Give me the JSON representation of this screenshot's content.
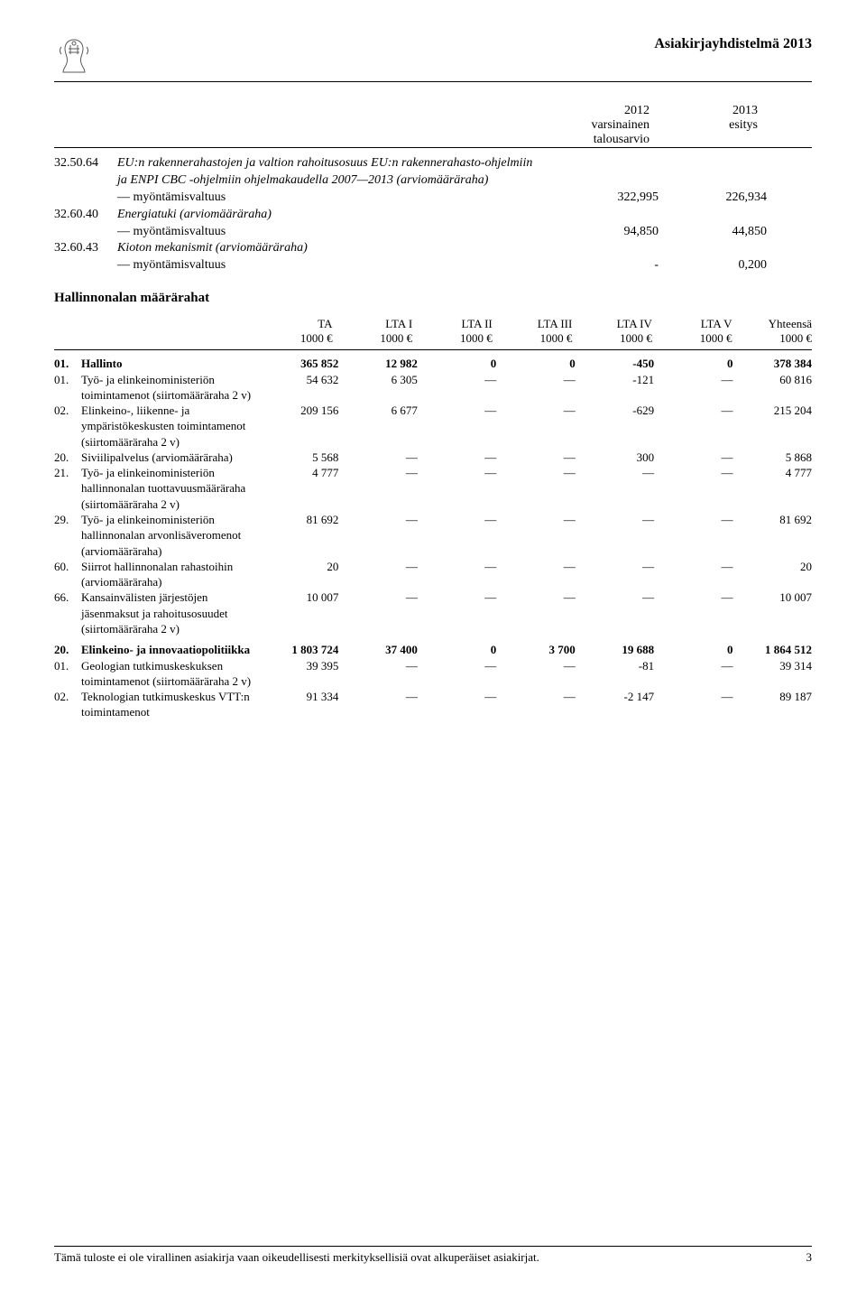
{
  "doc_title": "Asiakirjayhdistelmä 2013",
  "upper": {
    "head": {
      "col_a_line1": "2012",
      "col_a_line2": "varsinainen",
      "col_a_line3": "talousarvio",
      "col_b_line1": "2013",
      "col_b_line2": "esitys"
    },
    "rows": [
      {
        "code": "32.50.64",
        "desc_main": "EU:n rakennerahastojen ja valtion rahoitusosuus EU:n rakennerahasto-ohjelmiin ja ENPI CBC -ohjelmiin ohjelmakaudella 2007—2013 (arviomääräraha)",
        "desc_main_italic": true,
        "sub_label": "— myöntämisvaltuus",
        "val_a": "322,995",
        "val_b": "226,934"
      },
      {
        "code": "32.60.40",
        "desc_main": "Energiatuki (arviomääräraha)",
        "desc_main_italic": true,
        "sub_label": "— myöntämisvaltuus",
        "val_a": "94,850",
        "val_b": "44,850"
      },
      {
        "code": "32.60.43",
        "desc_main": "Kioton mekanismit (arviomääräraha)",
        "desc_main_italic": true,
        "sub_label": "— myöntämisvaltuus",
        "val_a": "-",
        "val_b": "0,200"
      }
    ]
  },
  "section_title": "Hallinnonalan määrärahat",
  "mtable": {
    "headers": [
      {
        "l1": "TA",
        "l2": "1000 €"
      },
      {
        "l1": "LTA I",
        "l2": "1000 €"
      },
      {
        "l1": "LTA II",
        "l2": "1000 €"
      },
      {
        "l1": "LTA III",
        "l2": "1000 €"
      },
      {
        "l1": "LTA IV",
        "l2": "1000 €"
      },
      {
        "l1": "LTA V",
        "l2": "1000 €"
      },
      {
        "l1": "Yhteensä",
        "l2": "1000 €"
      }
    ],
    "rows": [
      {
        "code": "01.",
        "desc": "Hallinto",
        "bold": true,
        "vals": [
          "365 852",
          "12 982",
          "0",
          "0",
          "-450",
          "0",
          "378 384"
        ]
      },
      {
        "code": "01.",
        "desc": "Työ- ja elinkeinoministeriön toimintamenot (siirtomääräraha 2 v)",
        "vals": [
          "54 632",
          "6 305",
          "—",
          "—",
          "-121",
          "—",
          "60 816"
        ]
      },
      {
        "code": "02.",
        "desc": "Elinkeino-, liikenne- ja ympäristökeskusten toimintamenot (siirtomääräraha 2 v)",
        "vals": [
          "209 156",
          "6 677",
          "—",
          "—",
          "-629",
          "—",
          "215 204"
        ]
      },
      {
        "code": "20.",
        "desc": "Siviilipalvelus (arviomääräraha)",
        "vals": [
          "5 568",
          "—",
          "—",
          "—",
          "300",
          "—",
          "5 868"
        ]
      },
      {
        "code": "21.",
        "desc": "Työ- ja elinkeinoministeriön hallinnonalan tuottavuusmääräraha (siirtomääräraha 2 v)",
        "vals": [
          "4 777",
          "—",
          "—",
          "—",
          "—",
          "—",
          "4 777"
        ]
      },
      {
        "code": "29.",
        "desc": "Työ- ja elinkeinoministeriön hallinnonalan arvonlisäveromenot (arviomääräraha)",
        "vals": [
          "81 692",
          "—",
          "—",
          "—",
          "—",
          "—",
          "81 692"
        ]
      },
      {
        "code": "60.",
        "desc": "Siirrot hallinnonalan rahastoihin (arviomääräraha)",
        "vals": [
          "20",
          "—",
          "—",
          "—",
          "—",
          "—",
          "20"
        ]
      },
      {
        "code": "66.",
        "desc": "Kansainvälisten järjestöjen jäsenmaksut ja rahoitusosuudet (siirtomääräraha 2 v)",
        "vals": [
          "10 007",
          "—",
          "—",
          "—",
          "—",
          "—",
          "10 007"
        ]
      },
      {
        "code": "20.",
        "desc": "Elinkeino- ja innovaatiopolitiikka",
        "bold": true,
        "vals": [
          "1 803 724",
          "37 400",
          "0",
          "3 700",
          "19 688",
          "0",
          "1 864 512"
        ]
      },
      {
        "code": "01.",
        "desc": "Geologian tutkimuskeskuksen toimintamenot (siirtomääräraha 2 v)",
        "vals": [
          "39 395",
          "—",
          "—",
          "—",
          "-81",
          "—",
          "39 314"
        ]
      },
      {
        "code": "02.",
        "desc": "Teknologian tutkimuskeskus VTT:n toimintamenot",
        "vals": [
          "91 334",
          "—",
          "—",
          "—",
          "-2 147",
          "—",
          "89 187"
        ]
      }
    ]
  },
  "footer": {
    "text": "Tämä tuloste ei ole virallinen asiakirja vaan oikeudellisesti merkityksellisiä ovat alkuperäiset asiakirjat.",
    "page": "3"
  }
}
